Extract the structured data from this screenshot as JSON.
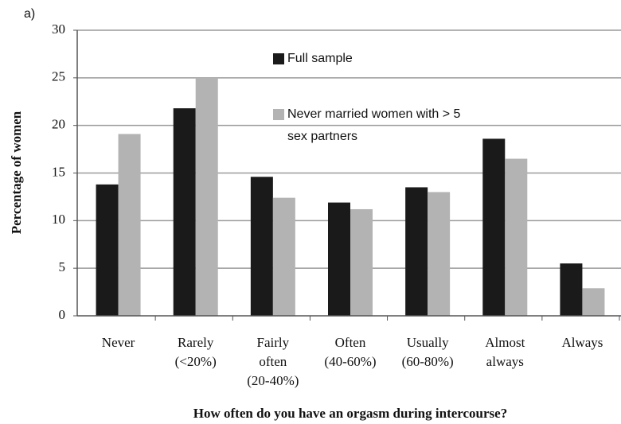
{
  "chart_data": {
    "type": "bar",
    "panel_label": "a)",
    "ylabel": "Percentage of women",
    "xlabel": "How often do you have an orgasm during intercourse?",
    "categories": [
      [
        "Never"
      ],
      [
        "Rarely",
        "(<20%)"
      ],
      [
        "Fairly",
        "often",
        "(20-40%)"
      ],
      [
        "Often",
        "(40-60%)"
      ],
      [
        "Usually",
        "(60-80%)"
      ],
      [
        "Almost",
        "always"
      ],
      [
        "Always"
      ]
    ],
    "series": [
      {
        "name": "Full sample",
        "color": "#1a1a1a",
        "values": [
          13.8,
          21.8,
          14.6,
          11.9,
          13.5,
          18.6,
          5.5
        ]
      },
      {
        "name": "Never married women with > 5 sex partners",
        "color": "#b3b3b3",
        "values": [
          19.1,
          25.0,
          12.4,
          11.2,
          13.0,
          16.5,
          2.9
        ]
      }
    ],
    "ylim": [
      0,
      30
    ],
    "yticks": [
      0,
      5,
      10,
      15,
      20,
      25,
      30
    ],
    "grid": true
  }
}
